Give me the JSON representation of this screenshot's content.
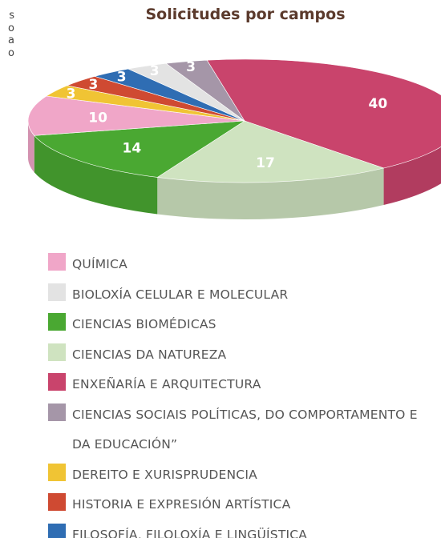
{
  "chart_data": {
    "type": "pie",
    "title": "Solicitudes por campos",
    "side_text": [
      "s",
      "o",
      "a",
      "o"
    ],
    "series": [
      {
        "name": "QUÍMICA",
        "color": "#f0a6c8",
        "values": [
          10
        ]
      },
      {
        "name": "BIOLOXÍA CELULAR E MOLECULAR",
        "color": "#e3e3e3",
        "values": [
          3
        ]
      },
      {
        "name": "CIENCIAS BIOMÉDICAS",
        "color": "#4aa832",
        "values": [
          14
        ]
      },
      {
        "name": "CIENCIAS DA NATUREZA",
        "color": "#cfe3c0",
        "values": [
          17
        ]
      },
      {
        "name": "ENXEÑARÍA E ARQUITECTURA",
        "color": "#c9446c",
        "values": [
          40
        ]
      },
      {
        "name": "CIENCIAS SOCIAIS POLÍTICAS, DO COMPORTAMENTO E DA EDUCACIÓN”",
        "color": "#a596a8",
        "values": [
          3
        ]
      },
      {
        "name": "DEREITO E XURISPRUDENCIA",
        "color": "#f0c434",
        "values": [
          3
        ]
      },
      {
        "name": "HISTORIA E EXPRESIÓN ARTÍSTICA",
        "color": "#cf4a32",
        "values": [
          3
        ]
      },
      {
        "name": "FILOSOFÍA, FILOLOXÍA E LINGÜÍSTICA",
        "color": "#2f6db3",
        "values": [
          3
        ]
      }
    ]
  }
}
